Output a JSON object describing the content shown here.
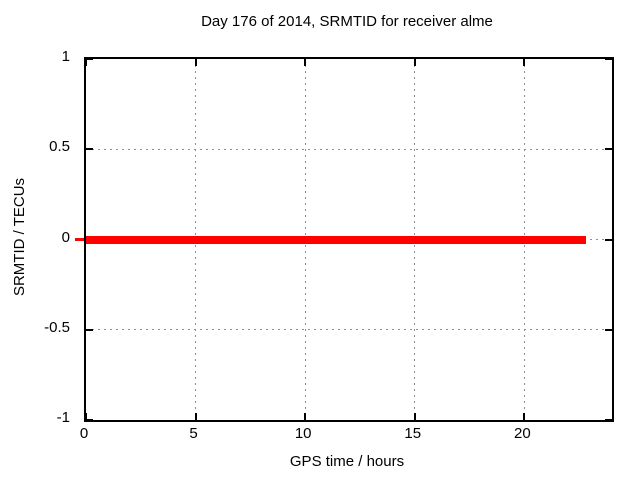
{
  "chart_data": {
    "type": "line",
    "title": "Day 176 of 2014, SRMTID for receiver alme",
    "xlabel": "GPS time / hours",
    "ylabel": "SRMTID / TECUs",
    "xlim": [
      0,
      24
    ],
    "ylim": [
      -1,
      1
    ],
    "xticks": [
      {
        "value": 0,
        "label": "0"
      },
      {
        "value": 5,
        "label": "5"
      },
      {
        "value": 10,
        "label": "10"
      },
      {
        "value": 15,
        "label": "15"
      },
      {
        "value": 20,
        "label": "20"
      }
    ],
    "yticks": [
      {
        "value": 1,
        "label": "1"
      },
      {
        "value": 0.5,
        "label": "0.5"
      },
      {
        "value": 0,
        "label": "0"
      },
      {
        "value": -0.5,
        "label": "-0.5"
      },
      {
        "value": -1,
        "label": "-1"
      }
    ],
    "grid": true,
    "grid_style": "dotted",
    "legend": "none",
    "series": [
      {
        "name": "SRMTID",
        "color": "#ff0000",
        "x": [
          0,
          22.8
        ],
        "y": [
          0,
          0
        ],
        "note": "constant zero value across the day"
      }
    ]
  },
  "colors": {
    "background": "#ffffff",
    "axis": "#000000",
    "grid": "#909090",
    "line": "#ff0000",
    "text": "#000000"
  }
}
